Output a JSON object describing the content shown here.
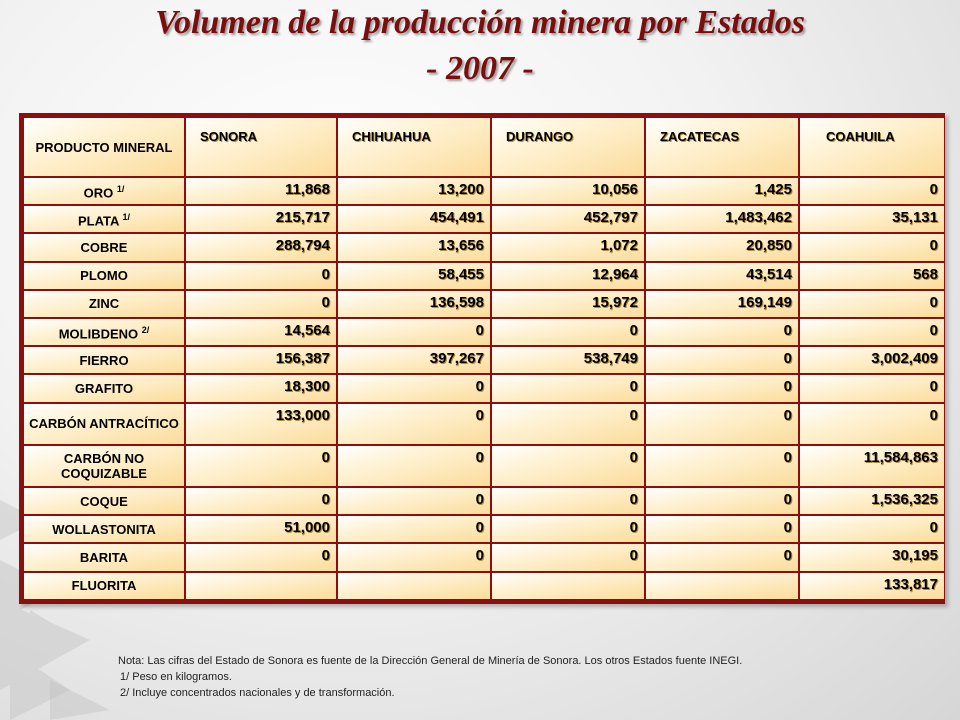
{
  "title": {
    "line1": "Volumen de la producción minera por Estados",
    "line2": "- 2007 -"
  },
  "table": {
    "headers": [
      "PRODUCTO MINERAL",
      "SONORA",
      "CHIHUAHUA",
      "DURANGO",
      "ZACATECAS",
      "COAHUILA"
    ],
    "rows": [
      {
        "mineral": "ORO",
        "sup": "1/",
        "values": [
          "11,868",
          "13,200",
          "10,056",
          "1,425",
          "0"
        ]
      },
      {
        "mineral": "PLATA",
        "sup": "1/",
        "values": [
          "215,717",
          "454,491",
          "452,797",
          "1,483,462",
          "35,131"
        ]
      },
      {
        "mineral": "COBRE",
        "sup": "",
        "values": [
          "288,794",
          "13,656",
          "1,072",
          "20,850",
          "0"
        ]
      },
      {
        "mineral": "PLOMO",
        "sup": "",
        "values": [
          "0",
          "58,455",
          "12,964",
          "43,514",
          "568"
        ]
      },
      {
        "mineral": "ZINC",
        "sup": "",
        "values": [
          "0",
          "136,598",
          "15,972",
          "169,149",
          "0"
        ]
      },
      {
        "mineral": "MOLIBDENO",
        "sup": "2/",
        "values": [
          "14,564",
          "0",
          "0",
          "0",
          "0"
        ]
      },
      {
        "mineral": "FIERRO",
        "sup": "",
        "values": [
          "156,387",
          "397,267",
          "538,749",
          "0",
          "3,002,409"
        ]
      },
      {
        "mineral": "GRAFITO",
        "sup": "",
        "values": [
          "18,300",
          "0",
          "0",
          "0",
          "0"
        ]
      },
      {
        "mineral": "CARBÓN ANTRACÍTICO",
        "sup": "",
        "values": [
          "133,000",
          "0",
          "0",
          "0",
          "0"
        ]
      },
      {
        "mineral": "CARBÓN NO COQUIZABLE",
        "sup": "",
        "values": [
          "0",
          "0",
          "0",
          "0",
          "11,584,863"
        ]
      },
      {
        "mineral": "COQUE",
        "sup": "",
        "values": [
          "0",
          "0",
          "0",
          "0",
          "1,536,325"
        ]
      },
      {
        "mineral": "WOLLASTONITA",
        "sup": "",
        "values": [
          "51,000",
          "0",
          "0",
          "0",
          "0"
        ]
      },
      {
        "mineral": "BARITA",
        "sup": "",
        "values": [
          "0",
          "0",
          "0",
          "0",
          "30,195"
        ]
      },
      {
        "mineral": "FLUORITA",
        "sup": "",
        "values": [
          "",
          "",
          "",
          "",
          "133,817"
        ]
      }
    ]
  },
  "notes": {
    "main": "Nota: Las cifras del Estado de Sonora es fuente de la Dirección General  de Minería  de Sonora. Los otros Estados fuente INEGI.",
    "n1": "1/   Peso en kilogramos.",
    "n2": "2/   Incluye  concentrados nacionales y de transformación."
  }
}
